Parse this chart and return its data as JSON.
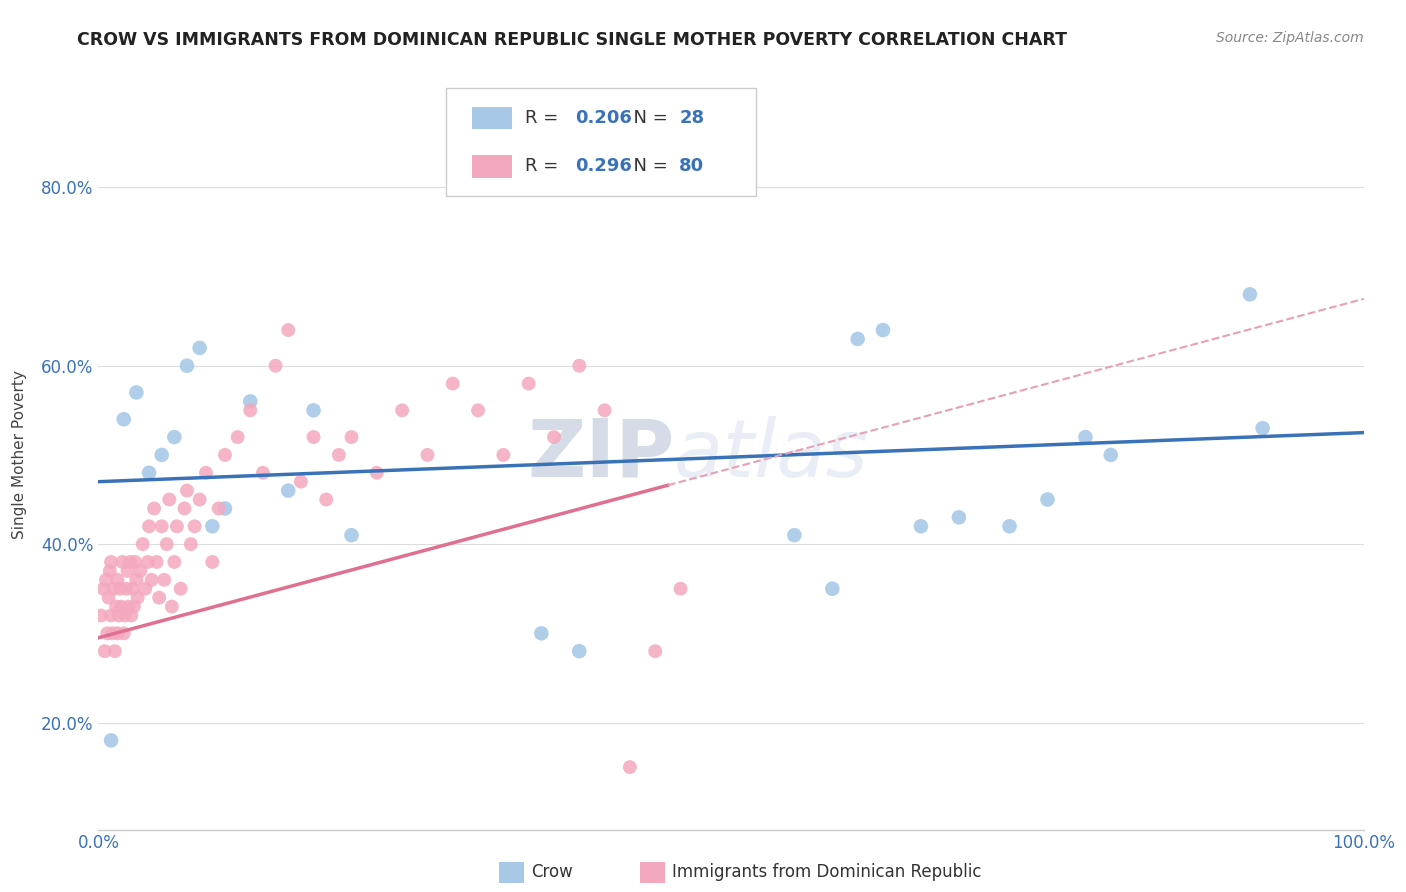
{
  "title": "CROW VS IMMIGRANTS FROM DOMINICAN REPUBLIC SINGLE MOTHER POVERTY CORRELATION CHART",
  "source": "Source: ZipAtlas.com",
  "ylabel": "Single Mother Poverty",
  "watermark": "ZIPatlas",
  "legend_1_label": "Crow",
  "legend_2_label": "Immigrants from Dominican Republic",
  "r_crow": 0.206,
  "n_crow": 28,
  "r_dr": 0.296,
  "n_dr": 80,
  "crow_color": "#a8c8e8",
  "dr_color": "#f4a8be",
  "crow_line_color": "#3a72b8",
  "dr_line_color": "#e07090",
  "dr_dash_color": "#e8a0b4",
  "background_color": "#ffffff",
  "grid_color": "#dddddd",
  "xlim": [
    0,
    1.0
  ],
  "ylim": [
    0.08,
    0.92
  ],
  "yticks": [
    0.2,
    0.4,
    0.6,
    0.8
  ],
  "ytick_labels": [
    "20.0%",
    "40.0%",
    "60.0%",
    "80.0%"
  ],
  "crow_x": [
    0.01,
    0.02,
    0.03,
    0.04,
    0.05,
    0.06,
    0.07,
    0.08,
    0.09,
    0.1,
    0.12,
    0.15,
    0.17,
    0.2,
    0.35,
    0.38,
    0.55,
    0.58,
    0.6,
    0.62,
    0.65,
    0.68,
    0.72,
    0.75,
    0.78,
    0.8,
    0.91,
    0.92
  ],
  "crow_y": [
    0.18,
    0.54,
    0.57,
    0.48,
    0.5,
    0.52,
    0.6,
    0.62,
    0.42,
    0.44,
    0.56,
    0.46,
    0.55,
    0.41,
    0.3,
    0.28,
    0.41,
    0.35,
    0.63,
    0.64,
    0.42,
    0.43,
    0.42,
    0.45,
    0.52,
    0.5,
    0.68,
    0.53
  ],
  "dr_x": [
    0.002,
    0.004,
    0.005,
    0.006,
    0.007,
    0.008,
    0.009,
    0.01,
    0.01,
    0.011,
    0.012,
    0.013,
    0.014,
    0.015,
    0.015,
    0.016,
    0.017,
    0.018,
    0.019,
    0.02,
    0.021,
    0.022,
    0.023,
    0.024,
    0.025,
    0.026,
    0.027,
    0.028,
    0.029,
    0.03,
    0.031,
    0.033,
    0.035,
    0.037,
    0.039,
    0.04,
    0.042,
    0.044,
    0.046,
    0.048,
    0.05,
    0.052,
    0.054,
    0.056,
    0.058,
    0.06,
    0.062,
    0.065,
    0.068,
    0.07,
    0.073,
    0.076,
    0.08,
    0.085,
    0.09,
    0.095,
    0.1,
    0.11,
    0.12,
    0.13,
    0.14,
    0.15,
    0.16,
    0.17,
    0.18,
    0.19,
    0.2,
    0.22,
    0.24,
    0.26,
    0.28,
    0.3,
    0.32,
    0.34,
    0.36,
    0.38,
    0.4,
    0.42,
    0.44,
    0.46
  ],
  "dr_y": [
    0.32,
    0.35,
    0.28,
    0.36,
    0.3,
    0.34,
    0.37,
    0.32,
    0.38,
    0.3,
    0.35,
    0.28,
    0.33,
    0.3,
    0.36,
    0.32,
    0.35,
    0.33,
    0.38,
    0.3,
    0.32,
    0.35,
    0.37,
    0.33,
    0.38,
    0.32,
    0.35,
    0.33,
    0.38,
    0.36,
    0.34,
    0.37,
    0.4,
    0.35,
    0.38,
    0.42,
    0.36,
    0.44,
    0.38,
    0.34,
    0.42,
    0.36,
    0.4,
    0.45,
    0.33,
    0.38,
    0.42,
    0.35,
    0.44,
    0.46,
    0.4,
    0.42,
    0.45,
    0.48,
    0.38,
    0.44,
    0.5,
    0.52,
    0.55,
    0.48,
    0.6,
    0.64,
    0.47,
    0.52,
    0.45,
    0.5,
    0.52,
    0.48,
    0.55,
    0.5,
    0.58,
    0.55,
    0.5,
    0.58,
    0.52,
    0.6,
    0.55,
    0.15,
    0.28,
    0.35
  ],
  "crow_intercept": 0.47,
  "crow_slope": 0.055,
  "dr_intercept": 0.295,
  "dr_slope": 0.38
}
